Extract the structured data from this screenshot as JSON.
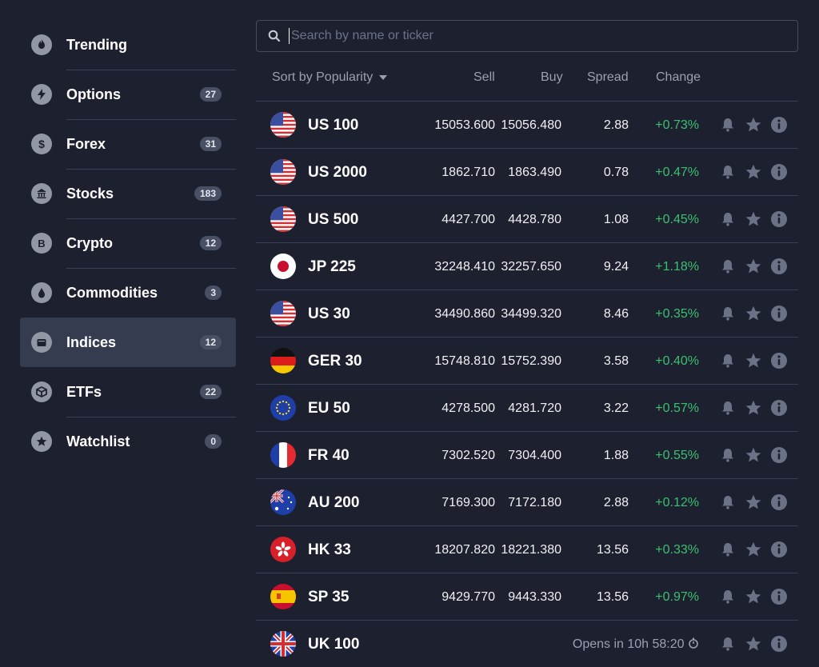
{
  "sidebar": {
    "items": [
      {
        "label": "Trending",
        "icon": "flame-icon"
      },
      {
        "label": "Options",
        "badge": "27",
        "icon": "bolt-icon"
      },
      {
        "label": "Forex",
        "badge": "31",
        "icon": "dollar-icon"
      },
      {
        "label": "Stocks",
        "badge": "183",
        "icon": "bank-icon"
      },
      {
        "label": "Crypto",
        "badge": "12",
        "icon": "bitcoin-icon"
      },
      {
        "label": "Commodities",
        "badge": "3",
        "icon": "drop-icon"
      },
      {
        "label": "Indices",
        "badge": "12",
        "icon": "indices-icon"
      },
      {
        "label": "ETFs",
        "badge": "22",
        "icon": "cube-icon"
      },
      {
        "label": "Watchlist",
        "badge": "0",
        "icon": "star-icon"
      }
    ],
    "active_index": 6
  },
  "search": {
    "placeholder": "Search by name or ticker"
  },
  "header": {
    "sort": "Sort by Popularity",
    "sell": "Sell",
    "buy": "Buy",
    "spread": "Spread",
    "change": "Change"
  },
  "rows": [
    {
      "name": "US 100",
      "sell": "15053.600",
      "buy": "15056.480",
      "spread": "2.88",
      "change": "+0.73%",
      "flag": "us"
    },
    {
      "name": "US 2000",
      "sell": "1862.710",
      "buy": "1863.490",
      "spread": "0.78",
      "change": "+0.47%",
      "flag": "us"
    },
    {
      "name": "US 500",
      "sell": "4427.700",
      "buy": "4428.780",
      "spread": "1.08",
      "change": "+0.45%",
      "flag": "us"
    },
    {
      "name": "JP 225",
      "sell": "32248.410",
      "buy": "32257.650",
      "spread": "9.24",
      "change": "+1.18%",
      "flag": "jp"
    },
    {
      "name": "US 30",
      "sell": "34490.860",
      "buy": "34499.320",
      "spread": "8.46",
      "change": "+0.35%",
      "flag": "us"
    },
    {
      "name": "GER 30",
      "sell": "15748.810",
      "buy": "15752.390",
      "spread": "3.58",
      "change": "+0.40%",
      "flag": "de"
    },
    {
      "name": "EU 50",
      "sell": "4278.500",
      "buy": "4281.720",
      "spread": "3.22",
      "change": "+0.57%",
      "flag": "eu"
    },
    {
      "name": "FR 40",
      "sell": "7302.520",
      "buy": "7304.400",
      "spread": "1.88",
      "change": "+0.55%",
      "flag": "fr"
    },
    {
      "name": "AU 200",
      "sell": "7169.300",
      "buy": "7172.180",
      "spread": "2.88",
      "change": "+0.12%",
      "flag": "au"
    },
    {
      "name": "HK 33",
      "sell": "18207.820",
      "buy": "18221.380",
      "spread": "13.56",
      "change": "+0.33%",
      "flag": "hk"
    },
    {
      "name": "SP 35",
      "sell": "9429.770",
      "buy": "9443.330",
      "spread": "13.56",
      "change": "+0.97%",
      "flag": "es"
    },
    {
      "name": "UK 100",
      "opens": "Opens in 10h 58:20",
      "flag": "uk"
    }
  ],
  "colors": {
    "background": "#1d202f",
    "positive": "#3cc070",
    "active_item": "#363c50"
  }
}
